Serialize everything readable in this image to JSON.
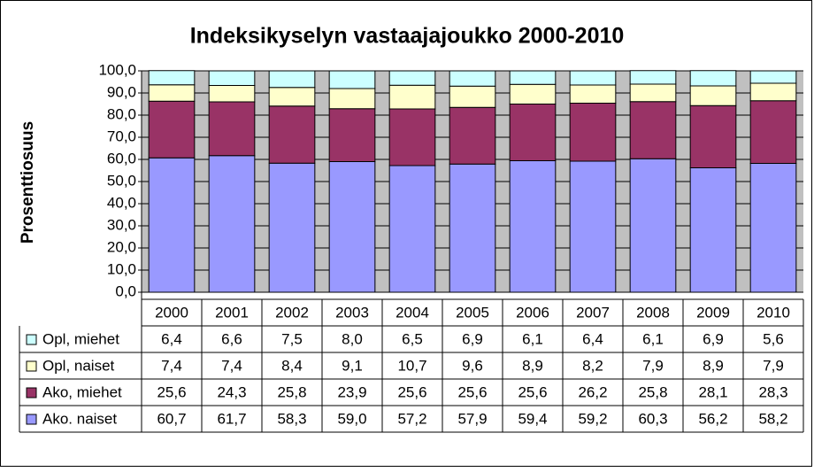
{
  "chart_data": {
    "type": "stacked_bar",
    "title": "Indeksikyselyn vastaajajoukko 2000-2010",
    "y_label": "Prosenttiosuus",
    "categories": [
      "2000",
      "2001",
      "2002",
      "2003",
      "2004",
      "2005",
      "2006",
      "2007",
      "2008",
      "2009",
      "2010"
    ],
    "series": [
      {
        "name": "Opl, miehet",
        "color": "#ccffff",
        "values": [
          6.4,
          6.6,
          7.5,
          8.0,
          6.5,
          6.9,
          6.1,
          6.4,
          6.1,
          6.9,
          5.6
        ],
        "value_labels": [
          "6,4",
          "6,6",
          "7,5",
          "8,0",
          "6,5",
          "6,9",
          "6,1",
          "6,4",
          "6,1",
          "6,9",
          "5,6"
        ]
      },
      {
        "name": "Opl, naiset",
        "color": "#ffffcc",
        "values": [
          7.4,
          7.4,
          8.4,
          9.1,
          10.7,
          9.6,
          8.9,
          8.2,
          7.9,
          8.9,
          7.9
        ],
        "value_labels": [
          "7,4",
          "7,4",
          "8,4",
          "9,1",
          "10,7",
          "9,6",
          "8,9",
          "8,2",
          "7,9",
          "8,9",
          "7,9"
        ]
      },
      {
        "name": "Ako, miehet",
        "color": "#993366",
        "values": [
          25.6,
          24.3,
          25.8,
          23.9,
          25.6,
          25.6,
          25.6,
          26.2,
          25.8,
          28.1,
          28.3
        ],
        "value_labels": [
          "25,6",
          "24,3",
          "25,8",
          "23,9",
          "25,6",
          "25,6",
          "25,6",
          "26,2",
          "25,8",
          "28,1",
          "28,3"
        ]
      },
      {
        "name": "Ako. naiset",
        "color": "#9999ff",
        "values": [
          60.7,
          61.7,
          58.3,
          59.0,
          57.2,
          57.9,
          59.4,
          59.2,
          60.3,
          56.2,
          58.2
        ],
        "value_labels": [
          "60,7",
          "61,7",
          "58,3",
          "59,0",
          "57,2",
          "57,9",
          "59,4",
          "59,2",
          "60,3",
          "56,2",
          "58,2"
        ]
      }
    ],
    "ylim": [
      0,
      100
    ],
    "yticks": [
      {
        "value": 0,
        "label": "0,0"
      },
      {
        "value": 10,
        "label": "10,0"
      },
      {
        "value": 20,
        "label": "20,0"
      },
      {
        "value": 30,
        "label": "30,0"
      },
      {
        "value": 40,
        "label": "40,0"
      },
      {
        "value": 50,
        "label": "50,0"
      },
      {
        "value": 60,
        "label": "60,0"
      },
      {
        "value": 70,
        "label": "70,0"
      },
      {
        "value": 80,
        "label": "80,0"
      },
      {
        "value": 90,
        "label": "90,0"
      },
      {
        "value": 100,
        "label": "100,0"
      }
    ],
    "grid": true,
    "plot_background": "#c0c0c0"
  }
}
